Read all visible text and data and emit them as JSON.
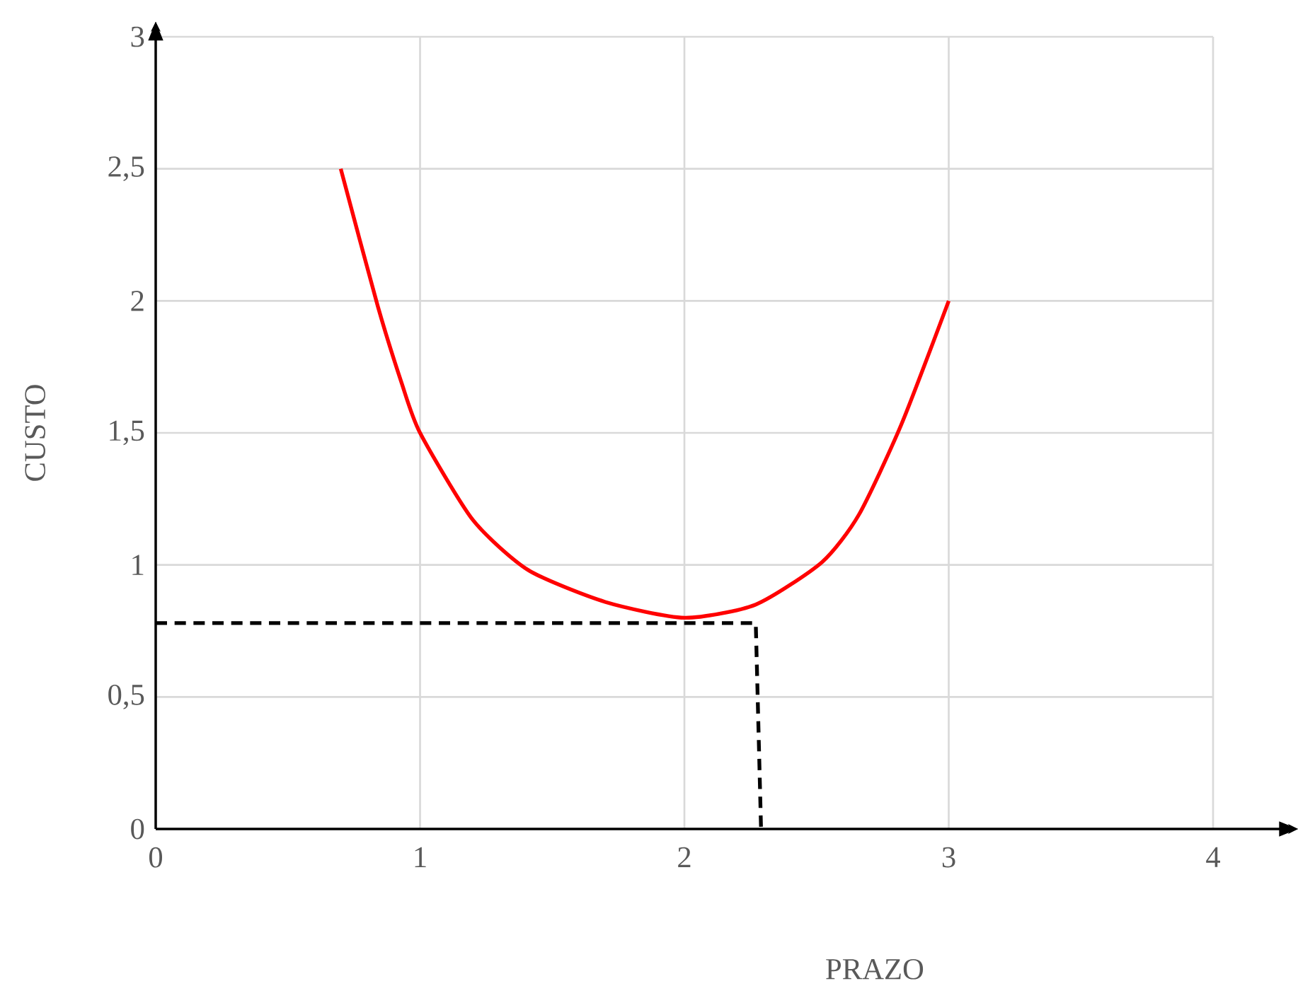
{
  "chart_data": {
    "type": "line",
    "xlabel": "PRAZO",
    "ylabel": "CUSTO",
    "xlim": [
      0,
      4
    ],
    "ylim": [
      0,
      3
    ],
    "xticks": [
      0,
      1,
      2,
      3,
      4
    ],
    "yticks": [
      {
        "value": 0,
        "label": "0"
      },
      {
        "value": 0.5,
        "label": "0,5"
      },
      {
        "value": 1,
        "label": "1"
      },
      {
        "value": 1.5,
        "label": "1,5"
      },
      {
        "value": 2,
        "label": "2"
      },
      {
        "value": 2.5,
        "label": "2,5"
      },
      {
        "value": 3,
        "label": "3"
      }
    ],
    "grid": true,
    "marker": "none",
    "series": [
      {
        "color": "#ff0000",
        "line_style": "solid",
        "x": [
          0.7,
          0.84,
          0.93,
          1.0,
          1.2,
          1.41,
          1.7,
          2.0,
          2.27,
          2.52,
          2.66,
          2.82,
          3.0
        ],
        "values": [
          2.5,
          1.98,
          1.69,
          1.5,
          1.17,
          0.98,
          0.86,
          0.8,
          0.85,
          1.01,
          1.19,
          1.53,
          2.0
        ]
      },
      {
        "color": "#000000",
        "line_style": "dashed",
        "x": [
          0,
          2.27,
          2.29
        ],
        "values": [
          0.78,
          0.78,
          0
        ]
      }
    ]
  }
}
